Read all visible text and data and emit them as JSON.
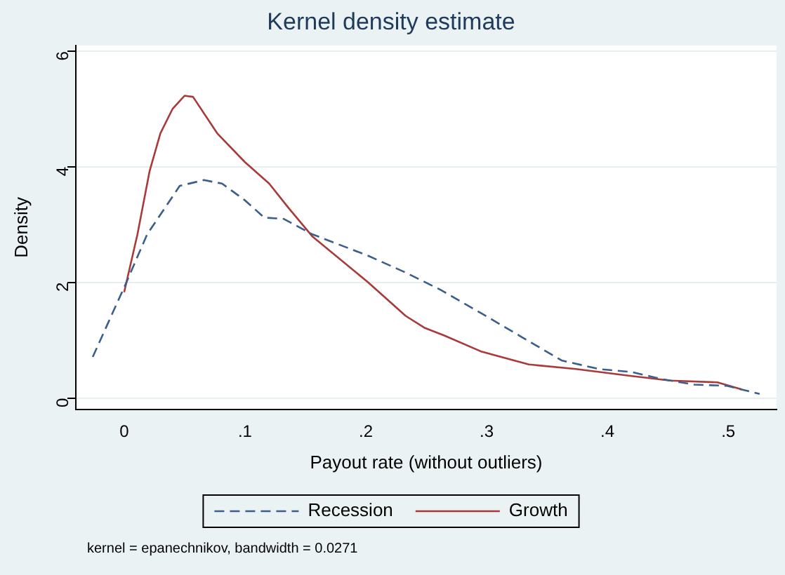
{
  "chart_data": {
    "type": "line",
    "title": "Kernel density estimate",
    "xlabel": "Payout rate (without outliers)",
    "ylabel": "Density",
    "xlim": [
      -0.04,
      0.54
    ],
    "xticks": [
      {
        "value": 0,
        "label": "0"
      },
      {
        "value": 0.1,
        "label": ".1"
      },
      {
        "value": 0.2,
        "label": ".2"
      },
      {
        "value": 0.3,
        "label": ".3"
      },
      {
        "value": 0.4,
        "label": ".4"
      },
      {
        "value": 0.5,
        "label": ".5"
      }
    ],
    "ylim": [
      -0.2,
      6.1
    ],
    "yticks": [
      0,
      2,
      4,
      6
    ],
    "grid": "y",
    "legend": "bottom",
    "marker": "none",
    "series": [
      {
        "name": "Recession",
        "color": "#3b5f8a",
        "line_style": "dashed",
        "x": [
          -0.026,
          0.001,
          0.019,
          0.046,
          0.066,
          0.081,
          0.1,
          0.116,
          0.132,
          0.156,
          0.202,
          0.233,
          0.262,
          0.296,
          0.327,
          0.362,
          0.393,
          0.42,
          0.444,
          0.472,
          0.499,
          0.526
        ],
        "values": [
          0.71,
          1.96,
          2.83,
          3.67,
          3.77,
          3.71,
          3.42,
          3.12,
          3.1,
          2.83,
          2.46,
          2.17,
          1.87,
          1.46,
          1.08,
          0.65,
          0.5,
          0.45,
          0.33,
          0.23,
          0.21,
          0.07
        ]
      },
      {
        "name": "Growth",
        "color": "#a83a3a",
        "line_style": "solid",
        "x": [
          0,
          0.011,
          0.021,
          0.03,
          0.04,
          0.05,
          0.057,
          0.077,
          0.1,
          0.12,
          0.136,
          0.156,
          0.202,
          0.233,
          0.249,
          0.265,
          0.296,
          0.335,
          0.374,
          0.42,
          0.452,
          0.491,
          0.511
        ],
        "values": [
          1.83,
          2.83,
          3.92,
          4.58,
          5.0,
          5.23,
          5.21,
          4.58,
          4.08,
          3.71,
          3.29,
          2.79,
          2.0,
          1.42,
          1.21,
          1.08,
          0.8,
          0.58,
          0.5,
          0.38,
          0.3,
          0.27,
          0.15
        ]
      }
    ],
    "annotations": [
      "kernel = epanechnikov, bandwidth = 0.0271"
    ]
  }
}
